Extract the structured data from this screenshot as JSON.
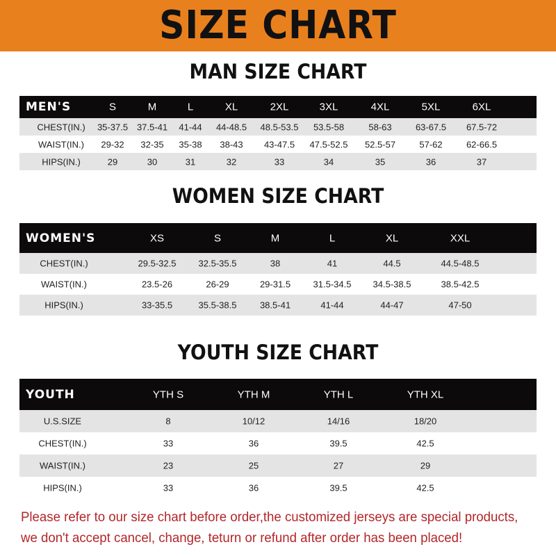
{
  "banner": {
    "title": "SIZE CHART",
    "color": "#E8801E"
  },
  "men": {
    "title": "MAN SIZE CHART",
    "header": [
      "MEN'S",
      "S",
      "M",
      "L",
      "XL",
      "2XL",
      "3XL",
      "4XL",
      "5XL",
      "6XL"
    ],
    "rows": [
      [
        "CHEST(IN.)",
        "35-37.5",
        "37.5-41",
        "41-44",
        "44-48.5",
        "48.5-53.5",
        "53.5-58",
        "58-63",
        "63-67.5",
        "67.5-72"
      ],
      [
        "WAIST(IN.)",
        "29-32",
        "32-35",
        "35-38",
        "38-43",
        "43-47.5",
        "47.5-52.5",
        "52.5-57",
        "57-62",
        "62-66.5"
      ],
      [
        "HIPS(IN.)",
        "29",
        "30",
        "31",
        "32",
        "33",
        "34",
        "35",
        "36",
        "37"
      ]
    ]
  },
  "women": {
    "title": "WOMEN SIZE CHART",
    "header": [
      "WOMEN'S",
      "XS",
      "S",
      "M",
      "L",
      "XL",
      "XXL"
    ],
    "rows": [
      [
        "CHEST(IN.)",
        "29.5-32.5",
        "32.5-35.5",
        "38",
        "41",
        "44.5",
        "44.5-48.5"
      ],
      [
        "WAIST(IN.)",
        "23.5-26",
        "26-29",
        "29-31.5",
        "31.5-34.5",
        "34.5-38.5",
        "38.5-42.5"
      ],
      [
        "HIPS(IN.)",
        "33-35.5",
        "35.5-38.5",
        "38.5-41",
        "41-44",
        "44-47",
        "47-50"
      ]
    ]
  },
  "youth": {
    "title": "YOUTH SIZE CHART",
    "header": [
      "YOUTH",
      "YTH S",
      "YTH M",
      "YTH L",
      "YTH XL"
    ],
    "rows": [
      [
        "U.S.SIZE",
        "8",
        "10/12",
        "14/16",
        "18/20"
      ],
      [
        "CHEST(IN.)",
        "33",
        "36",
        "39.5",
        "42.5"
      ],
      [
        "WAIST(IN.)",
        "23",
        "25",
        "27",
        "29"
      ],
      [
        "HIPS(IN.)",
        "33",
        "36",
        "39.5",
        "42.5"
      ]
    ]
  },
  "note": {
    "line1": "Please refer to our size chart before order,the customized jerseys are special products,",
    "line2": "we don't accept cancel, change, teturn or refund after order has been placed!",
    "color": "#B3262A"
  }
}
